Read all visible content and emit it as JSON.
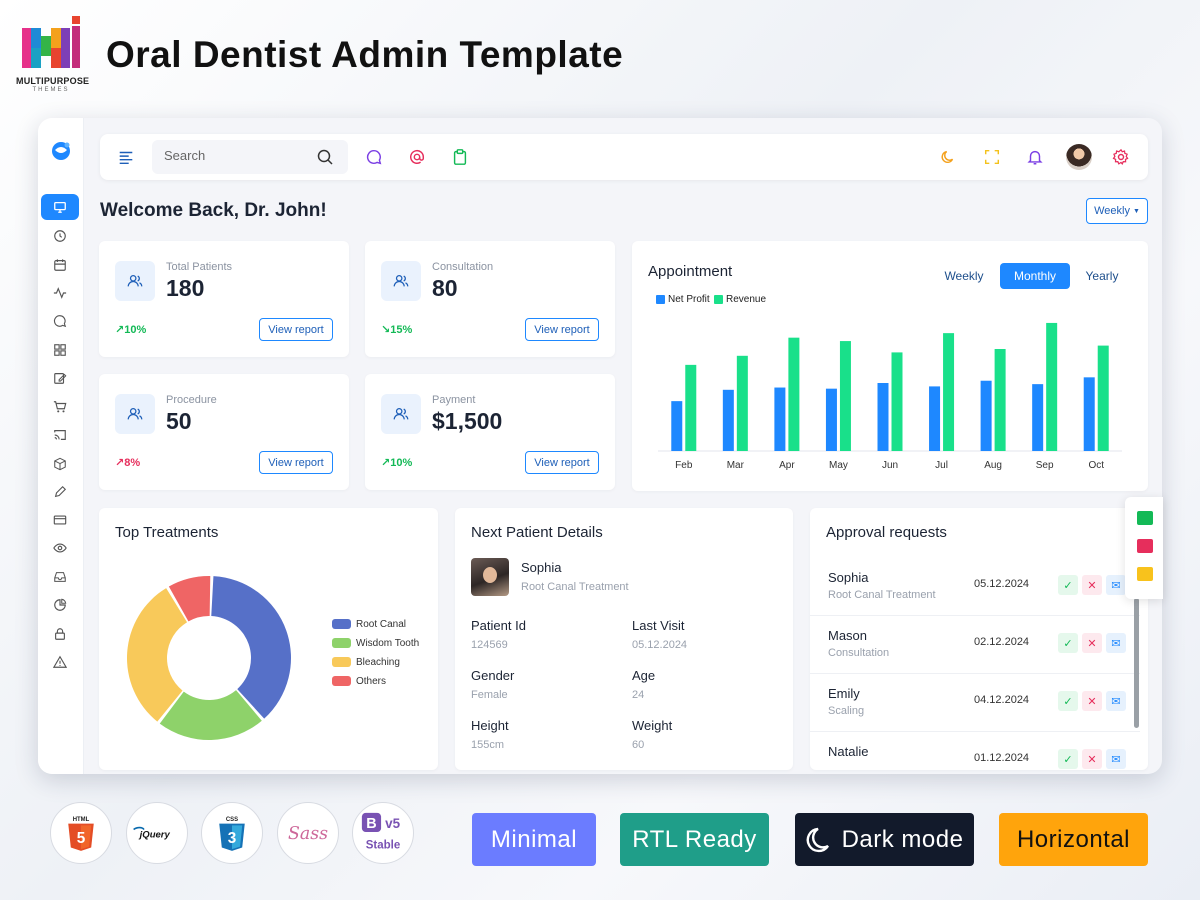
{
  "promo": {
    "brand_name": "MULTIPURPOSE",
    "brand_sub": "THEMES",
    "title": "Oral Dentist Admin Template"
  },
  "topbar": {
    "search_placeholder": "Search"
  },
  "welcome": "Welcome Back, Dr. John!",
  "period_dropdown": "Weekly",
  "stats": [
    {
      "label": "Total Patients",
      "value": "180",
      "delta": "10%",
      "trend": "up",
      "button": "View report"
    },
    {
      "label": "Consultation",
      "value": "80",
      "delta": "15%",
      "trend": "down",
      "button": "View report"
    },
    {
      "label": "Procedure",
      "value": "50",
      "delta": "8%",
      "trend": "up-red",
      "button": "View report"
    },
    {
      "label": "Payment",
      "value": "$1,500",
      "delta": "10%",
      "trend": "up",
      "button": "View report"
    }
  ],
  "appointment": {
    "title": "Appointment",
    "tabs": [
      "Weekly",
      "Monthly",
      "Yearly"
    ],
    "active_tab": "Monthly"
  },
  "chart_data": {
    "type": "bar",
    "categories": [
      "Feb",
      "Mar",
      "Apr",
      "May",
      "Jun",
      "Jul",
      "Aug",
      "Sep",
      "Oct"
    ],
    "series": [
      {
        "name": "Net Profit",
        "color": "#1e88ff",
        "values": [
          44,
          54,
          56,
          55,
          60,
          57,
          62,
          59,
          65
        ]
      },
      {
        "name": "Revenue",
        "color": "#19e08a",
        "values": [
          76,
          84,
          100,
          97,
          87,
          104,
          90,
          113,
          93
        ]
      }
    ],
    "ylim": [
      0,
      120
    ],
    "legend": "top-left",
    "grid": false
  },
  "top_treatments": {
    "title": "Top Treatments",
    "slices": [
      {
        "label": "Root Canal",
        "value": 38,
        "color": "#5670c8"
      },
      {
        "label": "Wisdom Tooth",
        "value": 22,
        "color": "#8ed26a"
      },
      {
        "label": "Bleaching",
        "value": 31,
        "color": "#f8c95a"
      },
      {
        "label": "Others",
        "value": 9,
        "color": "#ef6565"
      }
    ]
  },
  "next_patient": {
    "title": "Next Patient Details",
    "name": "Sophia",
    "treatment": "Root Canal Treatment",
    "fields": [
      {
        "key": "Patient Id",
        "value": "124569"
      },
      {
        "key": "Last Visit",
        "value": "05.12.2024"
      },
      {
        "key": "Gender",
        "value": "Female"
      },
      {
        "key": "Age",
        "value": "24"
      },
      {
        "key": "Height",
        "value": "155cm"
      },
      {
        "key": "Weight",
        "value": "60"
      }
    ]
  },
  "approvals": {
    "title": "Approval requests",
    "rows": [
      {
        "name": "Sophia",
        "type": "Root Canal Treatment",
        "date": "05.12.2024"
      },
      {
        "name": "Mason",
        "type": "Consultation",
        "date": "02.12.2024"
      },
      {
        "name": "Emily",
        "type": "Scaling",
        "date": "04.12.2024"
      },
      {
        "name": "Natalie",
        "type": "",
        "date": "01.12.2024"
      }
    ]
  },
  "tech_badges": [
    "HTML",
    "jQuery",
    "CSS",
    "Sass",
    "v5",
    "Stable"
  ],
  "features": [
    {
      "label": "Minimal",
      "color": "#6b7cff"
    },
    {
      "label": "RTL Ready",
      "color": "#1f9e89"
    },
    {
      "label": "Dark mode",
      "color": "#121a2b"
    },
    {
      "label": "Horizontal",
      "color": "#ffa40c"
    }
  ]
}
